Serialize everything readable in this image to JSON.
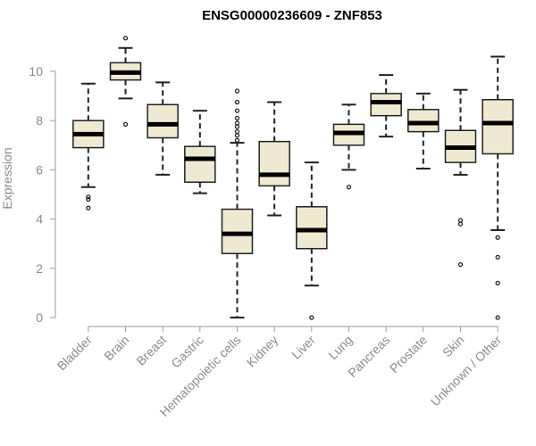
{
  "chart_data": {
    "type": "boxplot",
    "title": "ENSG00000236609 - ZNF853",
    "ylabel": "Expression",
    "xlabel": "",
    "ylim": [
      0,
      10.8
    ],
    "yticks": [
      0,
      2,
      4,
      6,
      8,
      10
    ],
    "ytick_labels": [
      "0",
      "2",
      "4",
      "6",
      "8",
      "10"
    ],
    "grid": false,
    "legend": "none",
    "colors": {
      "box_fill": "#efe9d2",
      "box_stroke": "#222222",
      "median": "#000000",
      "axis": "#9a9a9a",
      "label": "#8a8a8a"
    },
    "categories": [
      "Bladder",
      "Brain",
      "Breast",
      "Gastric",
      "Hematopoietic cells",
      "Kidney",
      "Liver",
      "Lung",
      "Pancreas",
      "Prostate",
      "Skin",
      "Unknown / Other"
    ],
    "series": [
      {
        "category": "Bladder",
        "min": 5.3,
        "q1": 6.9,
        "median": 7.45,
        "q3": 8.0,
        "max": 9.5,
        "outliers": [
          4.9,
          4.8,
          4.45
        ]
      },
      {
        "category": "Brain",
        "min": 8.9,
        "q1": 9.65,
        "median": 9.95,
        "q3": 10.35,
        "max": 10.95,
        "outliers": [
          11.35,
          7.85
        ]
      },
      {
        "category": "Breast",
        "min": 5.8,
        "q1": 7.3,
        "median": 7.85,
        "q3": 8.65,
        "max": 9.55,
        "outliers": []
      },
      {
        "category": "Gastric",
        "min": 5.05,
        "q1": 5.5,
        "median": 6.45,
        "q3": 6.95,
        "max": 8.4,
        "outliers": []
      },
      {
        "category": "Hematopoietic cells",
        "min": 0.0,
        "q1": 2.6,
        "median": 3.4,
        "q3": 4.4,
        "max": 7.1,
        "outliers": [
          7.2,
          7.4,
          7.55,
          7.75,
          7.9,
          8.1,
          8.4,
          8.75,
          9.2
        ]
      },
      {
        "category": "Kidney",
        "min": 4.15,
        "q1": 5.35,
        "median": 5.8,
        "q3": 7.15,
        "max": 8.75,
        "outliers": []
      },
      {
        "category": "Liver",
        "min": 1.3,
        "q1": 2.8,
        "median": 3.55,
        "q3": 4.5,
        "max": 6.3,
        "outliers": [
          0.0
        ]
      },
      {
        "category": "Lung",
        "min": 6.0,
        "q1": 7.0,
        "median": 7.5,
        "q3": 7.85,
        "max": 8.65,
        "outliers": [
          5.3
        ]
      },
      {
        "category": "Pancreas",
        "min": 7.35,
        "q1": 8.2,
        "median": 8.75,
        "q3": 9.1,
        "max": 9.85,
        "outliers": []
      },
      {
        "category": "Prostate",
        "min": 6.05,
        "q1": 7.55,
        "median": 7.9,
        "q3": 8.45,
        "max": 9.1,
        "outliers": []
      },
      {
        "category": "Skin",
        "min": 5.8,
        "q1": 6.3,
        "median": 6.9,
        "q3": 7.6,
        "max": 9.25,
        "outliers": [
          3.95,
          3.8,
          2.15
        ]
      },
      {
        "category": "Unknown / Other",
        "min": 3.55,
        "q1": 6.65,
        "median": 7.9,
        "q3": 8.85,
        "max": 10.6,
        "outliers": [
          3.25,
          2.45,
          1.4,
          0.0
        ]
      }
    ]
  }
}
